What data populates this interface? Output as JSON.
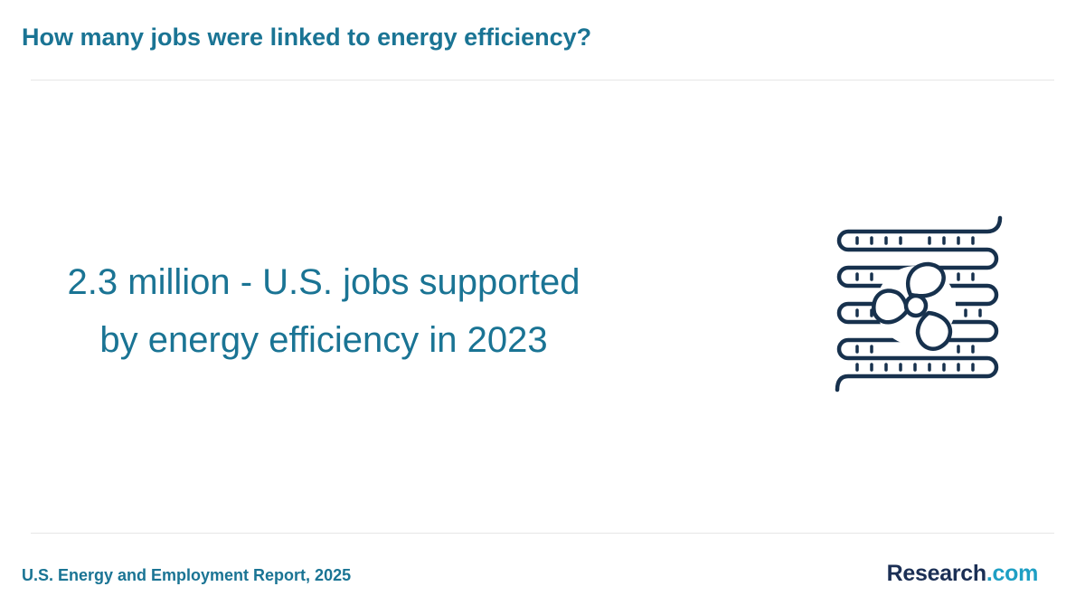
{
  "header": {
    "title": "How many jobs were linked to energy efficiency?"
  },
  "main": {
    "stat_line_1": "2.3 million - U.S. jobs supported",
    "stat_line_2": "by energy efficiency in 2023",
    "illustration_icon": "hvac-coil-fan-icon"
  },
  "footer": {
    "source": "U.S. Energy and Employment Report, 2025",
    "brand_name": "Research",
    "brand_suffix": ".com"
  },
  "colors": {
    "accent": "#1a7494",
    "icon_stroke": "#17314d",
    "brand_dark": "#1b2f55",
    "brand_light": "#1e9fc4",
    "divider": "#e6e6e6"
  }
}
